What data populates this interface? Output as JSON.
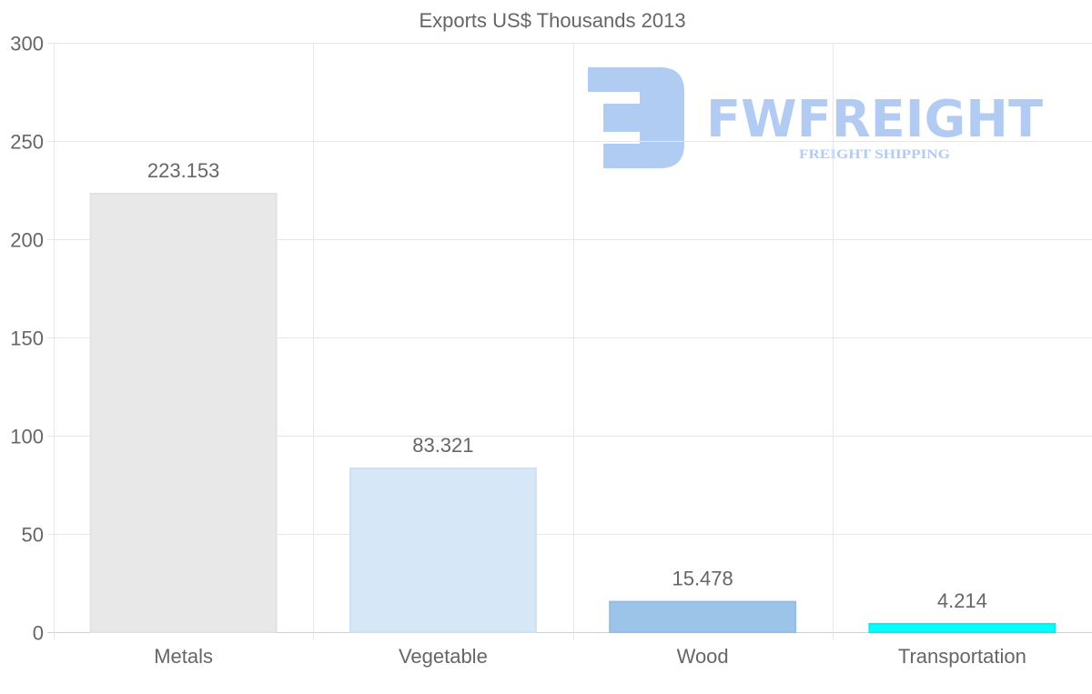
{
  "chart_data": {
    "type": "bar",
    "title": "Exports US$ Thousands 2013",
    "categories": [
      "Metals",
      "Vegetable",
      "Wood",
      "Transportation"
    ],
    "values": [
      223.153,
      83.321,
      15.478,
      4.214
    ],
    "value_labels": [
      "223.153",
      "83.321",
      "15.478",
      "4.214"
    ],
    "colors": [
      "#e8e8e8",
      "#d6e7f8",
      "#9cc4e8",
      "#00ffff"
    ],
    "border_colors": [
      "#e2e2e2",
      "#cfe0f3",
      "#94bde4",
      "#00f0f0"
    ],
    "ylim": [
      0,
      300
    ],
    "yticks": [
      0,
      50,
      100,
      150,
      200,
      250,
      300
    ],
    "xlabel": "",
    "ylabel": "",
    "grid": true,
    "legend": "none"
  },
  "watermark": {
    "brand": "FWFREIGHT",
    "tagline": "FREIGHT SHIPPING",
    "color": "#a9c6f2"
  }
}
